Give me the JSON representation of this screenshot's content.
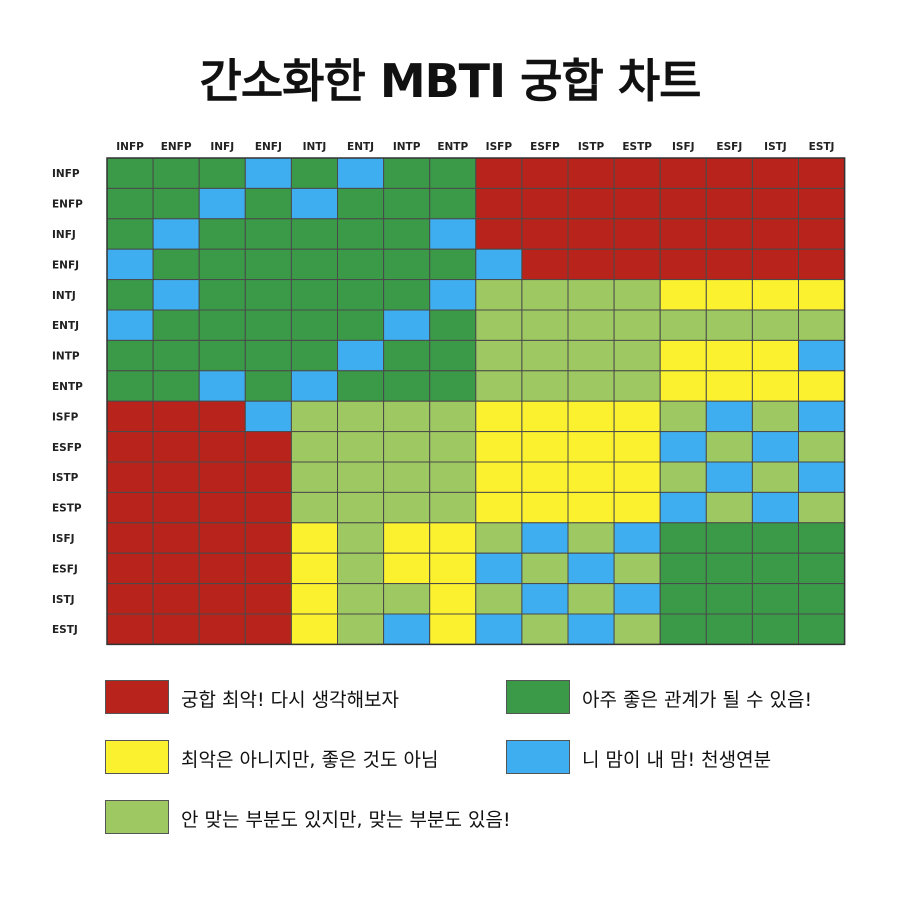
{
  "title": "간소화한 MBTI 궁합 차트",
  "colors": {
    "R": "#b8231b",
    "G": "#3a9a48",
    "B": "#3faef0",
    "Y": "#fbf12f",
    "L": "#9ec861"
  },
  "chart_data": {
    "type": "heatmap",
    "title": "간소화한 MBTI 궁합 차트",
    "columns": [
      "INFP",
      "ENFP",
      "INFJ",
      "ENFJ",
      "INTJ",
      "ENTJ",
      "INTP",
      "ENTP",
      "ISFP",
      "ESFP",
      "ISTP",
      "ESTP",
      "ISFJ",
      "ESFJ",
      "ISTJ",
      "ESTJ"
    ],
    "rows": [
      "INFP",
      "ENFP",
      "INFJ",
      "ENFJ",
      "INTJ",
      "ENTJ",
      "INTP",
      "ENTP",
      "ISFP",
      "ESFP",
      "ISTP",
      "ESTP",
      "ISFJ",
      "ESFJ",
      "ISTJ",
      "ESTJ"
    ],
    "matrix": [
      [
        "G",
        "G",
        "G",
        "B",
        "G",
        "B",
        "G",
        "G",
        "R",
        "R",
        "R",
        "R",
        "R",
        "R",
        "R",
        "R"
      ],
      [
        "G",
        "G",
        "B",
        "G",
        "B",
        "G",
        "G",
        "G",
        "R",
        "R",
        "R",
        "R",
        "R",
        "R",
        "R",
        "R"
      ],
      [
        "G",
        "B",
        "G",
        "G",
        "G",
        "G",
        "G",
        "B",
        "R",
        "R",
        "R",
        "R",
        "R",
        "R",
        "R",
        "R"
      ],
      [
        "B",
        "G",
        "G",
        "G",
        "G",
        "G",
        "G",
        "G",
        "B",
        "R",
        "R",
        "R",
        "R",
        "R",
        "R",
        "R"
      ],
      [
        "G",
        "B",
        "G",
        "G",
        "G",
        "G",
        "G",
        "B",
        "L",
        "L",
        "L",
        "L",
        "Y",
        "Y",
        "Y",
        "Y"
      ],
      [
        "B",
        "G",
        "G",
        "G",
        "G",
        "G",
        "B",
        "G",
        "L",
        "L",
        "L",
        "L",
        "L",
        "L",
        "L",
        "L"
      ],
      [
        "G",
        "G",
        "G",
        "G",
        "G",
        "B",
        "G",
        "G",
        "L",
        "L",
        "L",
        "L",
        "Y",
        "Y",
        "Y",
        "B"
      ],
      [
        "G",
        "G",
        "B",
        "G",
        "B",
        "G",
        "G",
        "G",
        "L",
        "L",
        "L",
        "L",
        "Y",
        "Y",
        "Y",
        "Y"
      ],
      [
        "R",
        "R",
        "R",
        "B",
        "L",
        "L",
        "L",
        "L",
        "Y",
        "Y",
        "Y",
        "Y",
        "L",
        "B",
        "L",
        "B"
      ],
      [
        "R",
        "R",
        "R",
        "R",
        "L",
        "L",
        "L",
        "L",
        "Y",
        "Y",
        "Y",
        "Y",
        "B",
        "L",
        "B",
        "L"
      ],
      [
        "R",
        "R",
        "R",
        "R",
        "L",
        "L",
        "L",
        "L",
        "Y",
        "Y",
        "Y",
        "Y",
        "L",
        "B",
        "L",
        "B"
      ],
      [
        "R",
        "R",
        "R",
        "R",
        "L",
        "L",
        "L",
        "L",
        "Y",
        "Y",
        "Y",
        "Y",
        "B",
        "L",
        "B",
        "L"
      ],
      [
        "R",
        "R",
        "R",
        "R",
        "Y",
        "L",
        "Y",
        "Y",
        "L",
        "B",
        "L",
        "B",
        "G",
        "G",
        "G",
        "G"
      ],
      [
        "R",
        "R",
        "R",
        "R",
        "Y",
        "L",
        "Y",
        "Y",
        "B",
        "L",
        "B",
        "L",
        "G",
        "G",
        "G",
        "G"
      ],
      [
        "R",
        "R",
        "R",
        "R",
        "Y",
        "L",
        "L",
        "Y",
        "L",
        "B",
        "L",
        "B",
        "G",
        "G",
        "G",
        "G"
      ],
      [
        "R",
        "R",
        "R",
        "R",
        "Y",
        "L",
        "B",
        "Y",
        "B",
        "L",
        "B",
        "L",
        "G",
        "G",
        "G",
        "G"
      ]
    ],
    "legend": [
      {
        "code": "R",
        "label": "궁합 최악! 다시 생각해보자"
      },
      {
        "code": "G",
        "label": "아주 좋은 관계가 될 수 있음!"
      },
      {
        "code": "Y",
        "label": "최악은 아니지만, 좋은 것도 아님"
      },
      {
        "code": "B",
        "label": "니 맘이 내 맘! 천생연분"
      },
      {
        "code": "L",
        "label": "안 맞는 부분도 있지만, 맞는 부분도 있음!"
      }
    ]
  }
}
